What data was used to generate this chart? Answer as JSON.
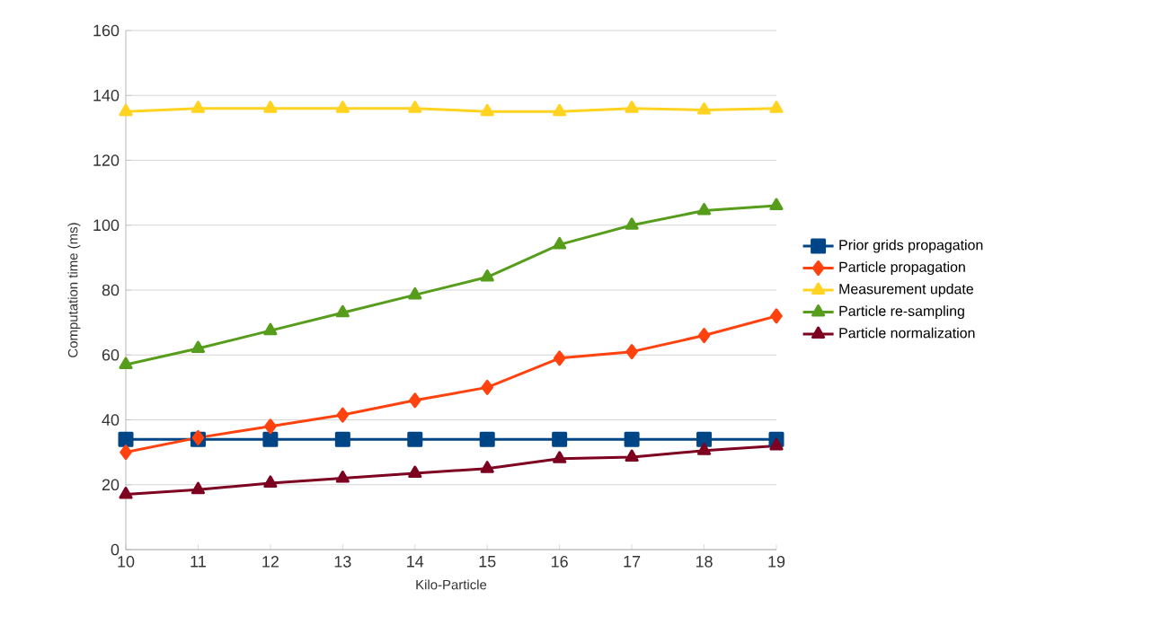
{
  "chart_data": {
    "type": "line",
    "xlabel": "Kilo-Particle",
    "ylabel": "Computation time (ms)",
    "x": [
      10,
      11,
      12,
      13,
      14,
      15,
      16,
      17,
      18,
      19
    ],
    "xlim": [
      10,
      19
    ],
    "xticks": [
      10,
      11,
      12,
      13,
      14,
      15,
      16,
      17,
      18,
      19
    ],
    "ylim": [
      0,
      160
    ],
    "yticks": [
      0,
      20,
      40,
      60,
      80,
      100,
      120,
      140,
      160
    ],
    "grid": "y",
    "legend": "right",
    "line_style": "solid",
    "series": [
      {
        "name": "Prior grids propagation",
        "color": "#004586",
        "marker": "square",
        "values": [
          34,
          34,
          34,
          34,
          34,
          34,
          34,
          34,
          34,
          34
        ]
      },
      {
        "name": "Particle propagation",
        "color": "#ff420e",
        "marker": "diamond",
        "values": [
          30,
          34.5,
          38,
          41.5,
          46,
          50,
          59,
          61,
          66,
          72
        ]
      },
      {
        "name": "Measurement update",
        "color": "#ffd320",
        "marker": "triangle",
        "values": [
          135,
          136,
          136,
          136,
          136,
          135,
          135,
          136,
          135.5,
          136
        ]
      },
      {
        "name": "Particle re-sampling",
        "color": "#579d1c",
        "marker": "triangle",
        "values": [
          57,
          62,
          67.5,
          73,
          78.5,
          84,
          94,
          100,
          104.5,
          106
        ]
      },
      {
        "name": "Particle normalization",
        "color": "#7e0021",
        "marker": "triangle",
        "values": [
          17,
          18.5,
          20.5,
          22,
          23.5,
          25,
          28,
          28.5,
          30.5,
          32
        ]
      }
    ]
  }
}
